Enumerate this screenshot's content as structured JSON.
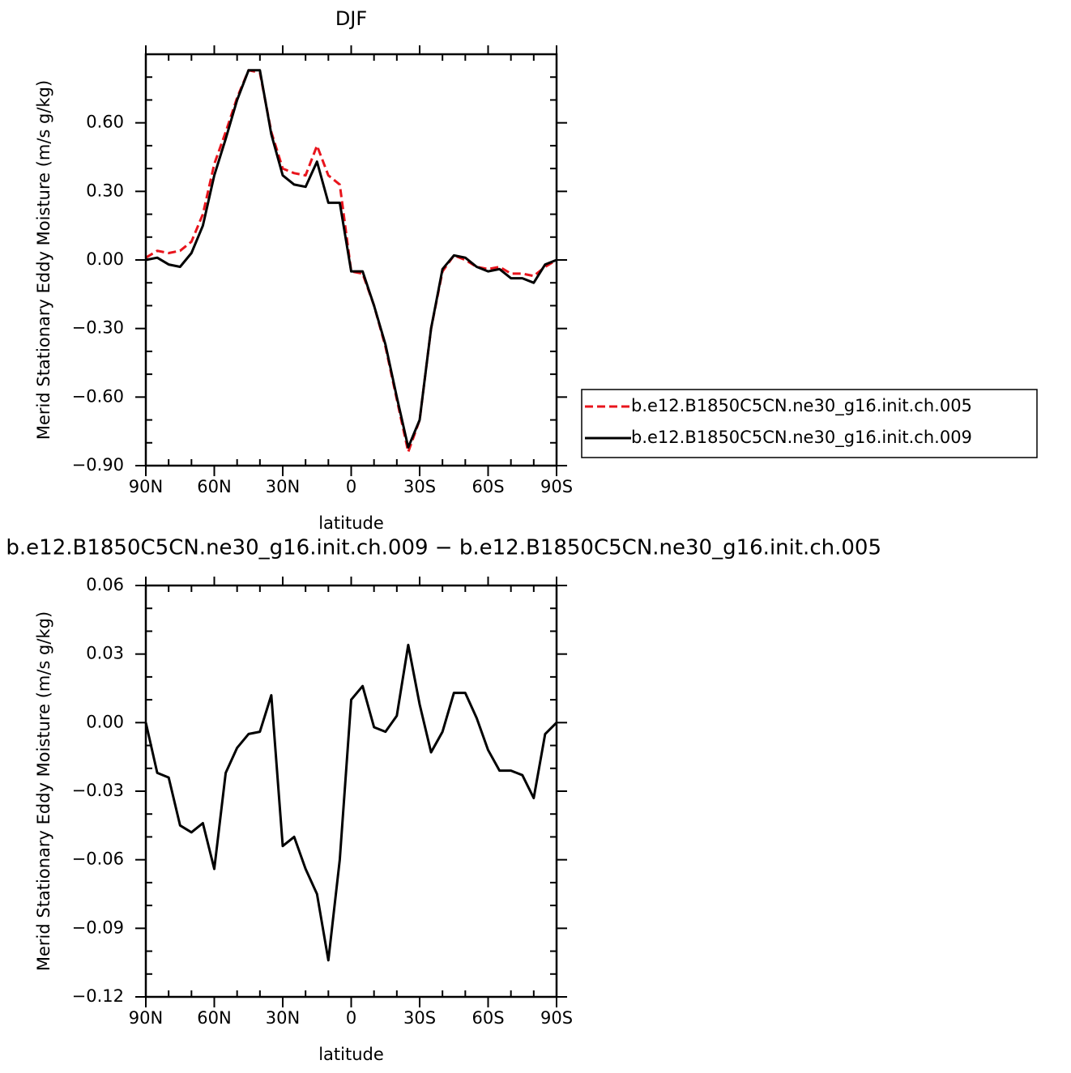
{
  "chart_data": [
    {
      "type": "line",
      "title": "DJF",
      "xlabel": "latitude",
      "ylabel": "Merid Stationary Eddy Moisture (m/s g/kg)",
      "x": [
        90,
        85,
        80,
        75,
        70,
        65,
        60,
        55,
        50,
        45,
        40,
        35,
        30,
        25,
        20,
        15,
        10,
        5,
        0,
        -5,
        -10,
        -15,
        -20,
        -25,
        -30,
        -35,
        -40,
        -45,
        -50,
        -55,
        -60,
        -65,
        -70,
        -75,
        -80,
        -85,
        -90
      ],
      "series": [
        {
          "name": "b.e12.B1850C5CN.ne30_g16.init.ch.005",
          "color": "#e8141c",
          "line_style": "dashed",
          "values": [
            0.01,
            0.04,
            0.03,
            0.04,
            0.08,
            0.2,
            0.42,
            0.56,
            0.71,
            0.83,
            0.82,
            0.56,
            0.4,
            0.38,
            0.37,
            0.5,
            0.37,
            0.33,
            -0.05,
            -0.06,
            -0.2,
            -0.38,
            -0.61,
            -0.84,
            -0.7,
            -0.3,
            -0.05,
            0.02,
            0.0,
            -0.03,
            -0.04,
            -0.03,
            -0.06,
            -0.06,
            -0.07,
            -0.03,
            0.0
          ]
        },
        {
          "name": "b.e12.B1850C5CN.ne30_g16.init.ch.009",
          "color": "#000000",
          "line_style": "solid",
          "values": [
            0.0,
            0.01,
            -0.02,
            -0.03,
            0.03,
            0.15,
            0.37,
            0.53,
            0.7,
            0.83,
            0.83,
            0.55,
            0.37,
            0.33,
            0.32,
            0.43,
            0.25,
            0.25,
            -0.05,
            -0.05,
            -0.2,
            -0.37,
            -0.6,
            -0.82,
            -0.7,
            -0.3,
            -0.04,
            0.02,
            0.01,
            -0.03,
            -0.05,
            -0.04,
            -0.08,
            -0.08,
            -0.1,
            -0.02,
            0.0
          ]
        }
      ],
      "xlim": [
        90,
        -90
      ],
      "xticks": [
        {
          "value": 90,
          "label": "90N"
        },
        {
          "value": 60,
          "label": "60N"
        },
        {
          "value": 30,
          "label": "30N"
        },
        0,
        {
          "value": -30,
          "label": "30S"
        },
        {
          "value": -60,
          "label": "60S"
        },
        {
          "value": -90,
          "label": "90S"
        }
      ],
      "xminorticks": [
        80,
        70,
        50,
        40,
        20,
        10,
        -10,
        -20,
        -40,
        -50,
        -70,
        -80
      ],
      "ylim": [
        -0.9,
        0.9
      ],
      "yticks": [
        {
          "value": -0.9,
          "label": "−0.90"
        },
        {
          "value": -0.6,
          "label": "−0.60"
        },
        {
          "value": -0.3,
          "label": "−0.30"
        },
        {
          "value": 0,
          "label": "0.00"
        },
        {
          "value": 0.3,
          "label": "0.30"
        },
        {
          "value": 0.6,
          "label": "0.60"
        }
      ],
      "yminorticks": [
        -0.8,
        -0.7,
        -0.5,
        -0.4,
        -0.2,
        -0.1,
        0.1,
        0.2,
        0.4,
        0.5,
        0.7,
        0.8
      ],
      "legend_position": "right"
    },
    {
      "type": "line",
      "title": "b.e12.B1850C5CN.ne30_g16.init.ch.009 − b.e12.B1850C5CN.ne30_g16.init.ch.005",
      "xlabel": "latitude",
      "ylabel": "Merid Stationary Eddy Moisture (m/s g/kg)",
      "x": [
        90,
        85,
        80,
        75,
        70,
        65,
        60,
        55,
        50,
        45,
        40,
        35,
        30,
        25,
        20,
        15,
        10,
        5,
        0,
        -5,
        -10,
        -15,
        -20,
        -25,
        -30,
        -35,
        -40,
        -45,
        -50,
        -55,
        -60,
        -65,
        -70,
        -75,
        -80,
        -85,
        -90
      ],
      "series": [
        {
          "color": "#000000",
          "line_style": "solid",
          "values": [
            0.0,
            -0.022,
            -0.024,
            -0.045,
            -0.048,
            -0.044,
            -0.064,
            -0.022,
            -0.011,
            -0.005,
            -0.004,
            0.012,
            -0.054,
            -0.05,
            -0.064,
            -0.075,
            -0.104,
            -0.06,
            0.01,
            0.016,
            -0.002,
            -0.004,
            0.003,
            0.034,
            0.008,
            -0.013,
            -0.004,
            0.013,
            0.013,
            0.002,
            -0.012,
            -0.021,
            -0.021,
            -0.023,
            -0.033,
            -0.005,
            0.0
          ]
        }
      ],
      "xlim": [
        90,
        -90
      ],
      "xticks": [
        {
          "value": 90,
          "label": "90N"
        },
        {
          "value": 60,
          "label": "60N"
        },
        {
          "value": 30,
          "label": "30N"
        },
        0,
        {
          "value": -30,
          "label": "30S"
        },
        {
          "value": -60,
          "label": "60S"
        },
        {
          "value": -90,
          "label": "90S"
        }
      ],
      "xminorticks": [
        80,
        70,
        50,
        40,
        20,
        10,
        -10,
        -20,
        -40,
        -50,
        -70,
        -80
      ],
      "ylim": [
        -0.12,
        0.06
      ],
      "yticks": [
        {
          "value": -0.12,
          "label": "−0.12"
        },
        {
          "value": -0.09,
          "label": "−0.09"
        },
        {
          "value": -0.06,
          "label": "−0.06"
        },
        {
          "value": -0.03,
          "label": "−0.03"
        },
        {
          "value": 0,
          "label": "0.00"
        },
        {
          "value": 0.03,
          "label": "0.03"
        },
        {
          "value": 0.06,
          "label": "0.06"
        }
      ],
      "yminorticks": [
        -0.11,
        -0.1,
        -0.08,
        -0.07,
        -0.05,
        -0.04,
        -0.02,
        -0.01,
        0.01,
        0.02,
        0.04,
        0.05
      ]
    }
  ]
}
